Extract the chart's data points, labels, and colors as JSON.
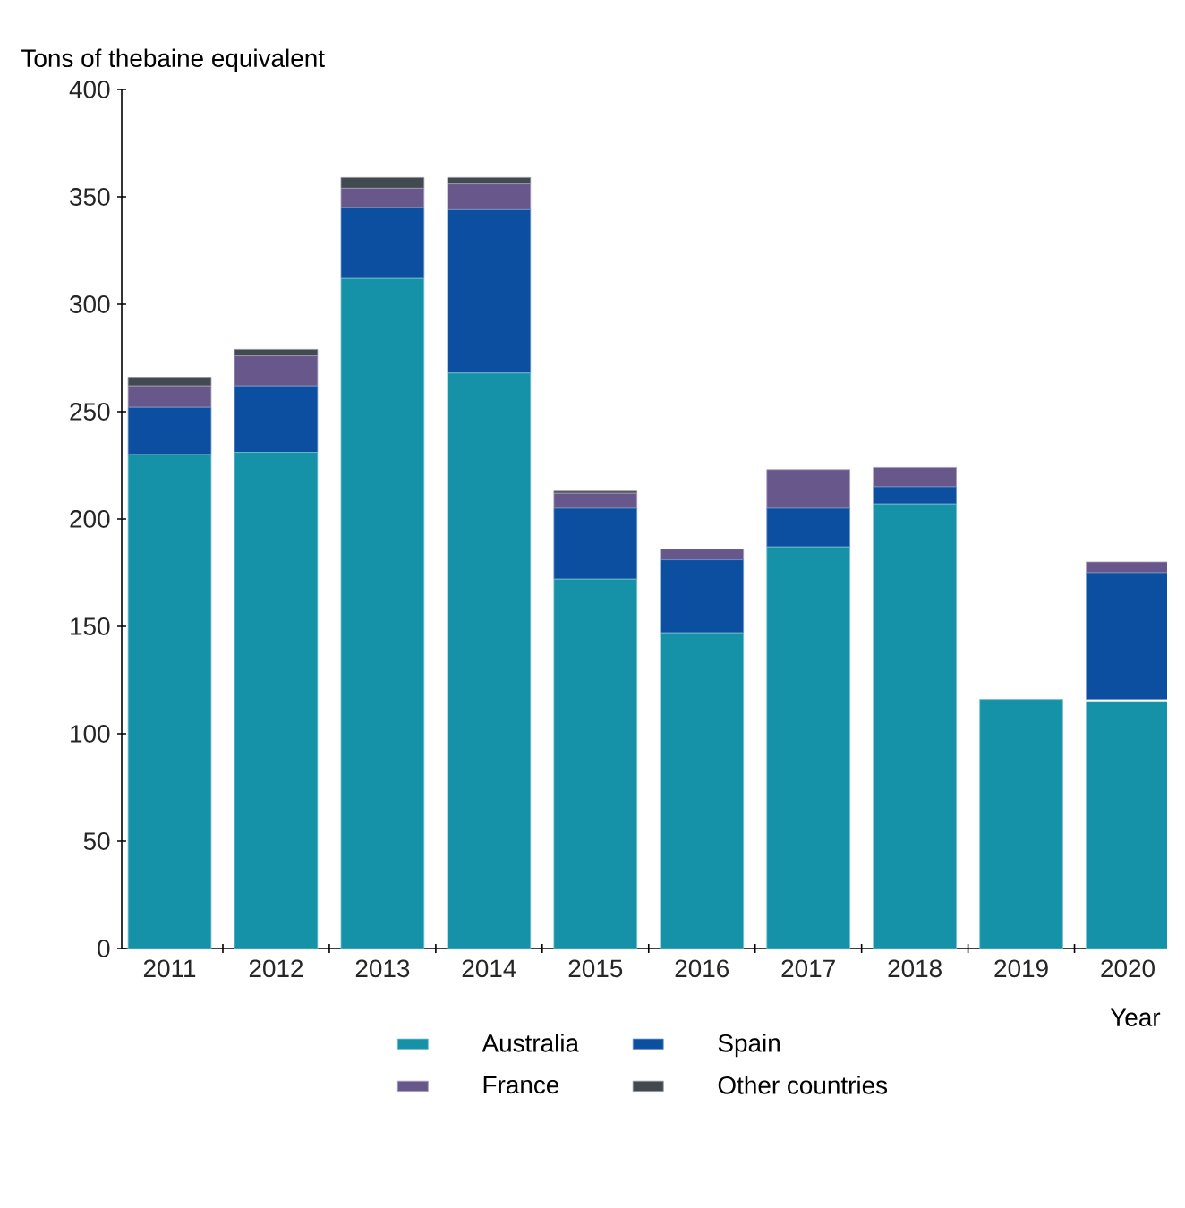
{
  "chart_data": {
    "type": "bar",
    "stacked": true,
    "ylabel": "Tons of thebaine equivalent",
    "xlabel": "Year",
    "categories": [
      "2011",
      "2012",
      "2013",
      "2014",
      "2015",
      "2016",
      "2017",
      "2018",
      "2019",
      "2020"
    ],
    "series": [
      {
        "name": "Australia",
        "color": "#1692a8",
        "values": [
          230,
          231,
          312,
          268,
          172,
          147,
          187,
          207,
          116,
          115
        ]
      },
      {
        "name": "Spain",
        "color": "#0c4ea0",
        "values": [
          22,
          31,
          33,
          76,
          33,
          34,
          18,
          8,
          null,
          59
        ]
      },
      {
        "name": "France",
        "color": "#67578b",
        "values": [
          10,
          14,
          9,
          12,
          7,
          5,
          18,
          9,
          null,
          5
        ]
      },
      {
        "name": "Other countries",
        "color": "#434a4f",
        "values": [
          4,
          3,
          5,
          3,
          1,
          null,
          null,
          null,
          null,
          null
        ]
      }
    ],
    "ylim": [
      0,
      400
    ],
    "yticks": [
      0,
      50,
      100,
      150,
      200,
      250,
      300,
      350,
      400
    ],
    "grid": false,
    "legend": "bottom"
  }
}
